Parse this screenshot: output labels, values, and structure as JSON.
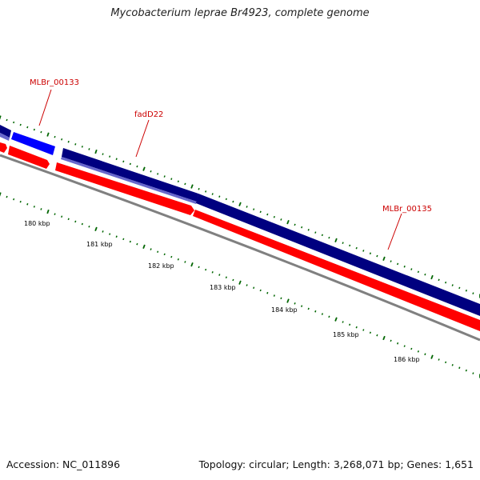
{
  "title": "Mycobacterium leprae Br4923, complete genome",
  "footer": {
    "accession": "Accession: NC_011896",
    "summary": "Topology: circular; Length: 3,268,071 bp; Genes: 1,651"
  },
  "colors": {
    "forward_cds": "#000080",
    "forward_highlight": "#0000ff",
    "forward_secondary": "#6666cc",
    "reverse_cds": "#ff0000",
    "backbone": "#808080",
    "ticks": "#006600",
    "gene_label": "#cc0000"
  },
  "genes": [
    {
      "name": "MLBr_00133"
    },
    {
      "name": "fadD22"
    },
    {
      "name": "MLBr_00135"
    }
  ],
  "ticks": {
    "kbp_labels": [
      "180 kbp",
      "181 kbp",
      "182 kbp",
      "183 kbp",
      "184 kbp",
      "185 kbp",
      "186 kbp"
    ]
  }
}
